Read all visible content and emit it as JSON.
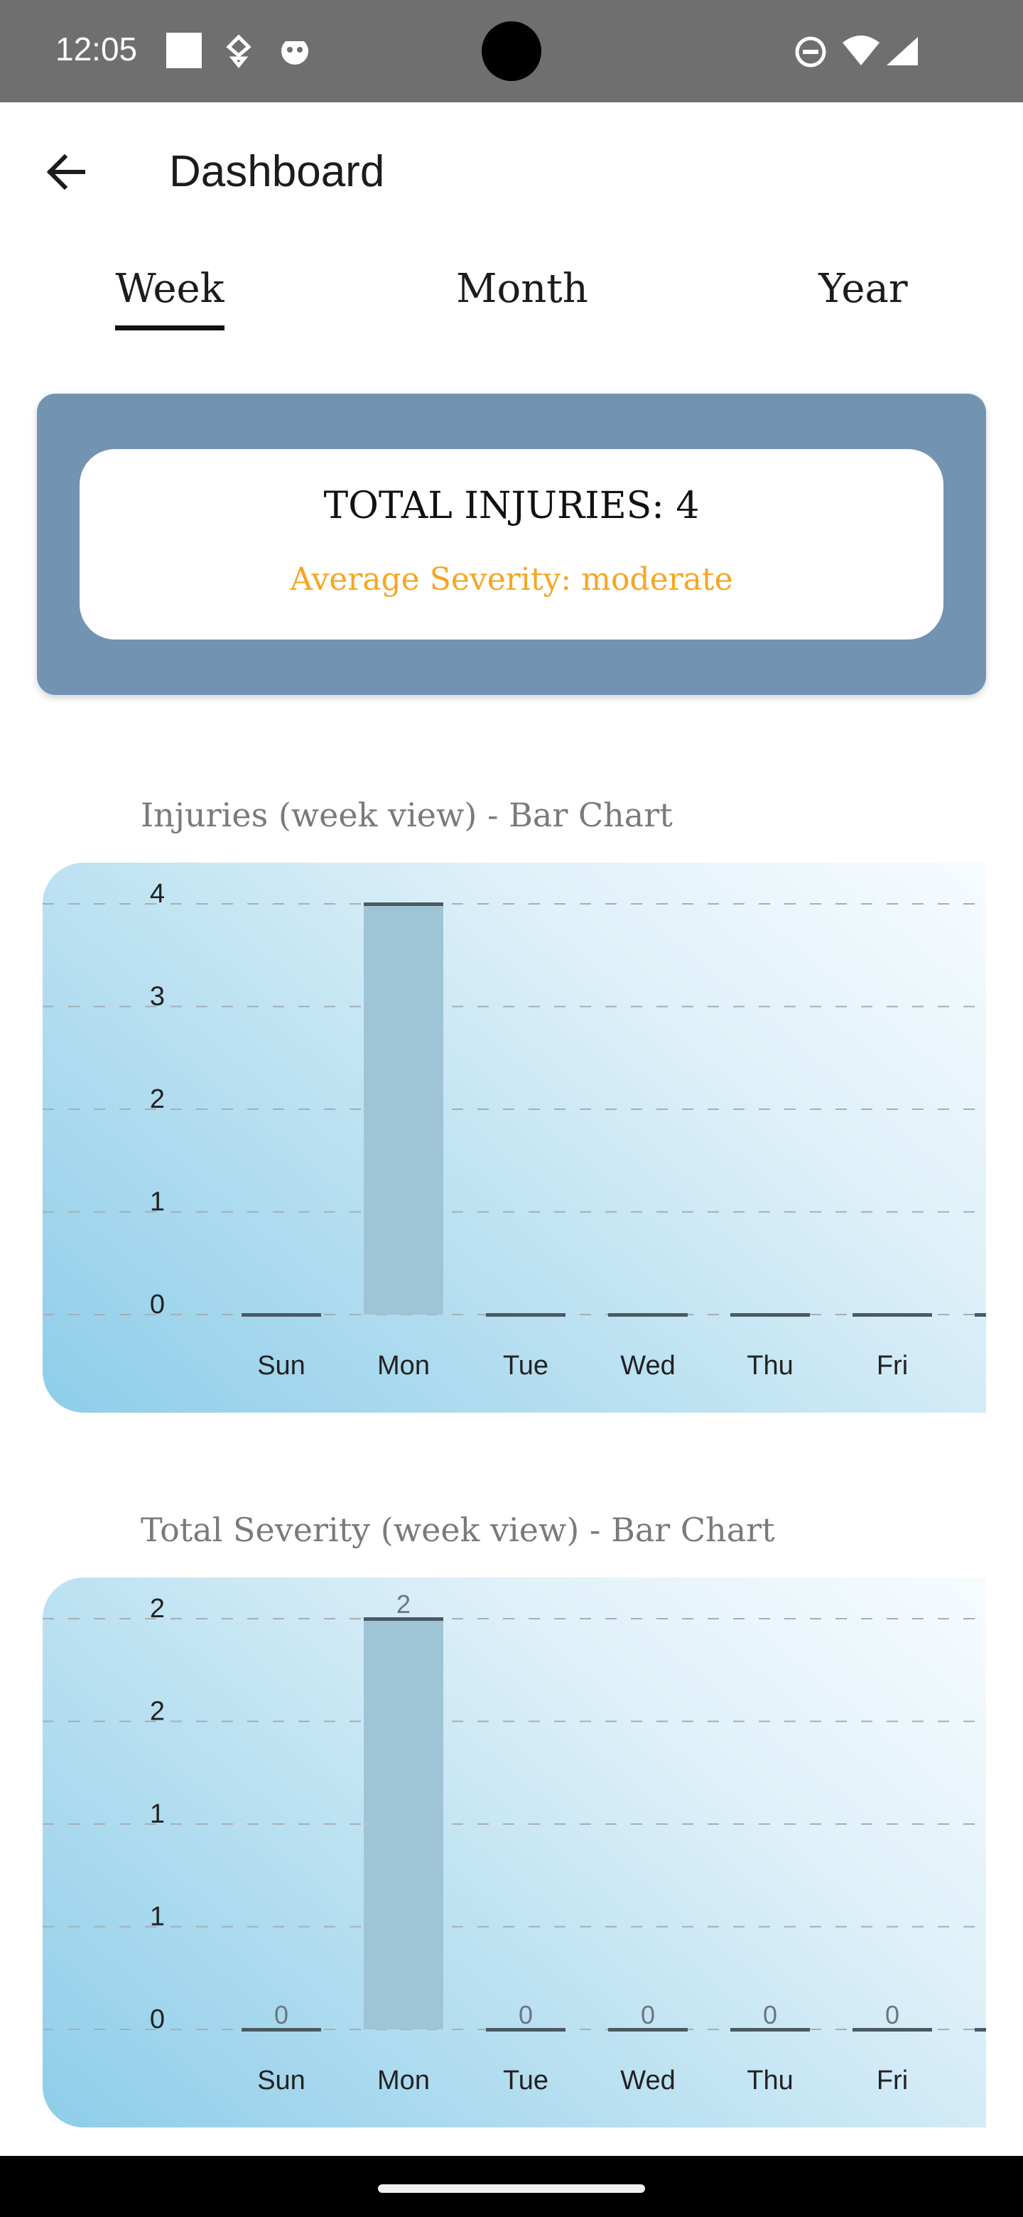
{
  "status_bar": {
    "time": "12:05",
    "left_icons": [
      "square-notification-icon",
      "debug-notification-icon",
      "android-notification-icon"
    ],
    "right_icons": [
      "do-not-disturb-icon",
      "wifi-icon",
      "signal-icon"
    ]
  },
  "app_bar": {
    "title": "Dashboard",
    "back_icon": "arrow-back-icon"
  },
  "tabs": [
    {
      "label": "Week",
      "selected": true
    },
    {
      "label": "Month",
      "selected": false
    },
    {
      "label": "Year",
      "selected": false
    }
  ],
  "summary": {
    "total_label": "TOTAL INJURIES: 4",
    "severity_label": "Average Severity: moderate",
    "severity_color": "#f5a623",
    "card_color": "#7393b3"
  },
  "charts": [
    {
      "title": "Injuries (week view) - Bar Chart",
      "chart_data": {
        "type": "bar",
        "title": "Injuries (week view) - Bar Chart",
        "categories": [
          "Sun",
          "Mon",
          "Tue",
          "Wed",
          "Thu",
          "Fri"
        ],
        "values": [
          0,
          4,
          0,
          0,
          0,
          0
        ],
        "y_ticks": [
          "0",
          "1",
          "2",
          "3",
          "4"
        ],
        "ylim": [
          0,
          4
        ],
        "data_labels": [],
        "grid": true,
        "bar_color": "#9fc4d6"
      }
    },
    {
      "title": "Total Severity (week view) - Bar Chart",
      "chart_data": {
        "type": "bar",
        "title": "Total Severity (week view) - Bar Chart",
        "categories": [
          "Sun",
          "Mon",
          "Tue",
          "Wed",
          "Thu",
          "Fri"
        ],
        "values": [
          0,
          2,
          0,
          0,
          0,
          0
        ],
        "y_ticks": [
          "0",
          "1",
          "1",
          "2",
          "2"
        ],
        "ylim": [
          0,
          2
        ],
        "data_labels": [
          "0",
          "2",
          "0",
          "0",
          "0",
          "0"
        ],
        "grid": true,
        "bar_color": "#9fc4d6"
      }
    }
  ]
}
